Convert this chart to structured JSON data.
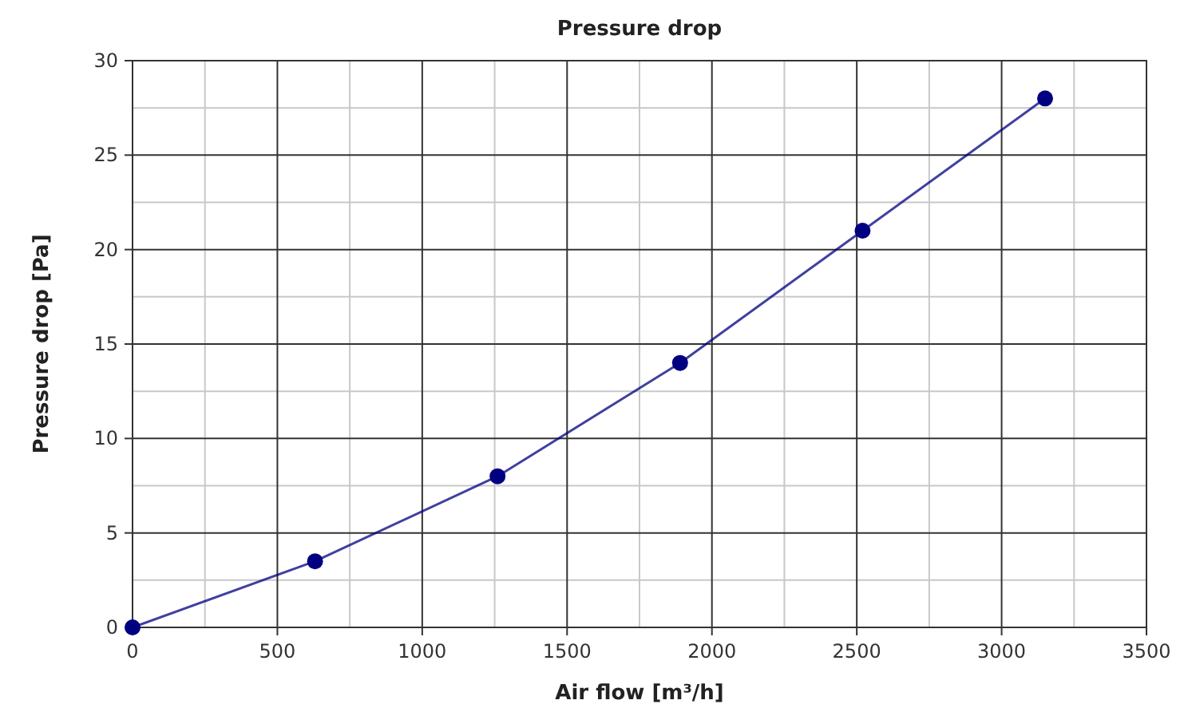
{
  "chart_data": {
    "type": "line",
    "title": "Pressure drop",
    "xlabel": "Air flow [m³/h]",
    "ylabel": "Pressure drop [Pa]",
    "x": [
      0,
      630,
      1260,
      1890,
      2520,
      3150
    ],
    "series": [
      {
        "color": "#000080",
        "values": [
          0,
          3.5,
          8,
          14,
          21,
          28
        ]
      }
    ],
    "xlim": [
      0,
      3500
    ],
    "xticks": [
      0,
      500,
      1000,
      1500,
      2000,
      2500,
      3000,
      3500
    ],
    "ylim": [
      0,
      30
    ],
    "yticks": [
      0,
      5,
      10,
      15,
      20,
      25,
      30
    ],
    "grid": true,
    "marker": "circle",
    "line_style": "solid"
  }
}
